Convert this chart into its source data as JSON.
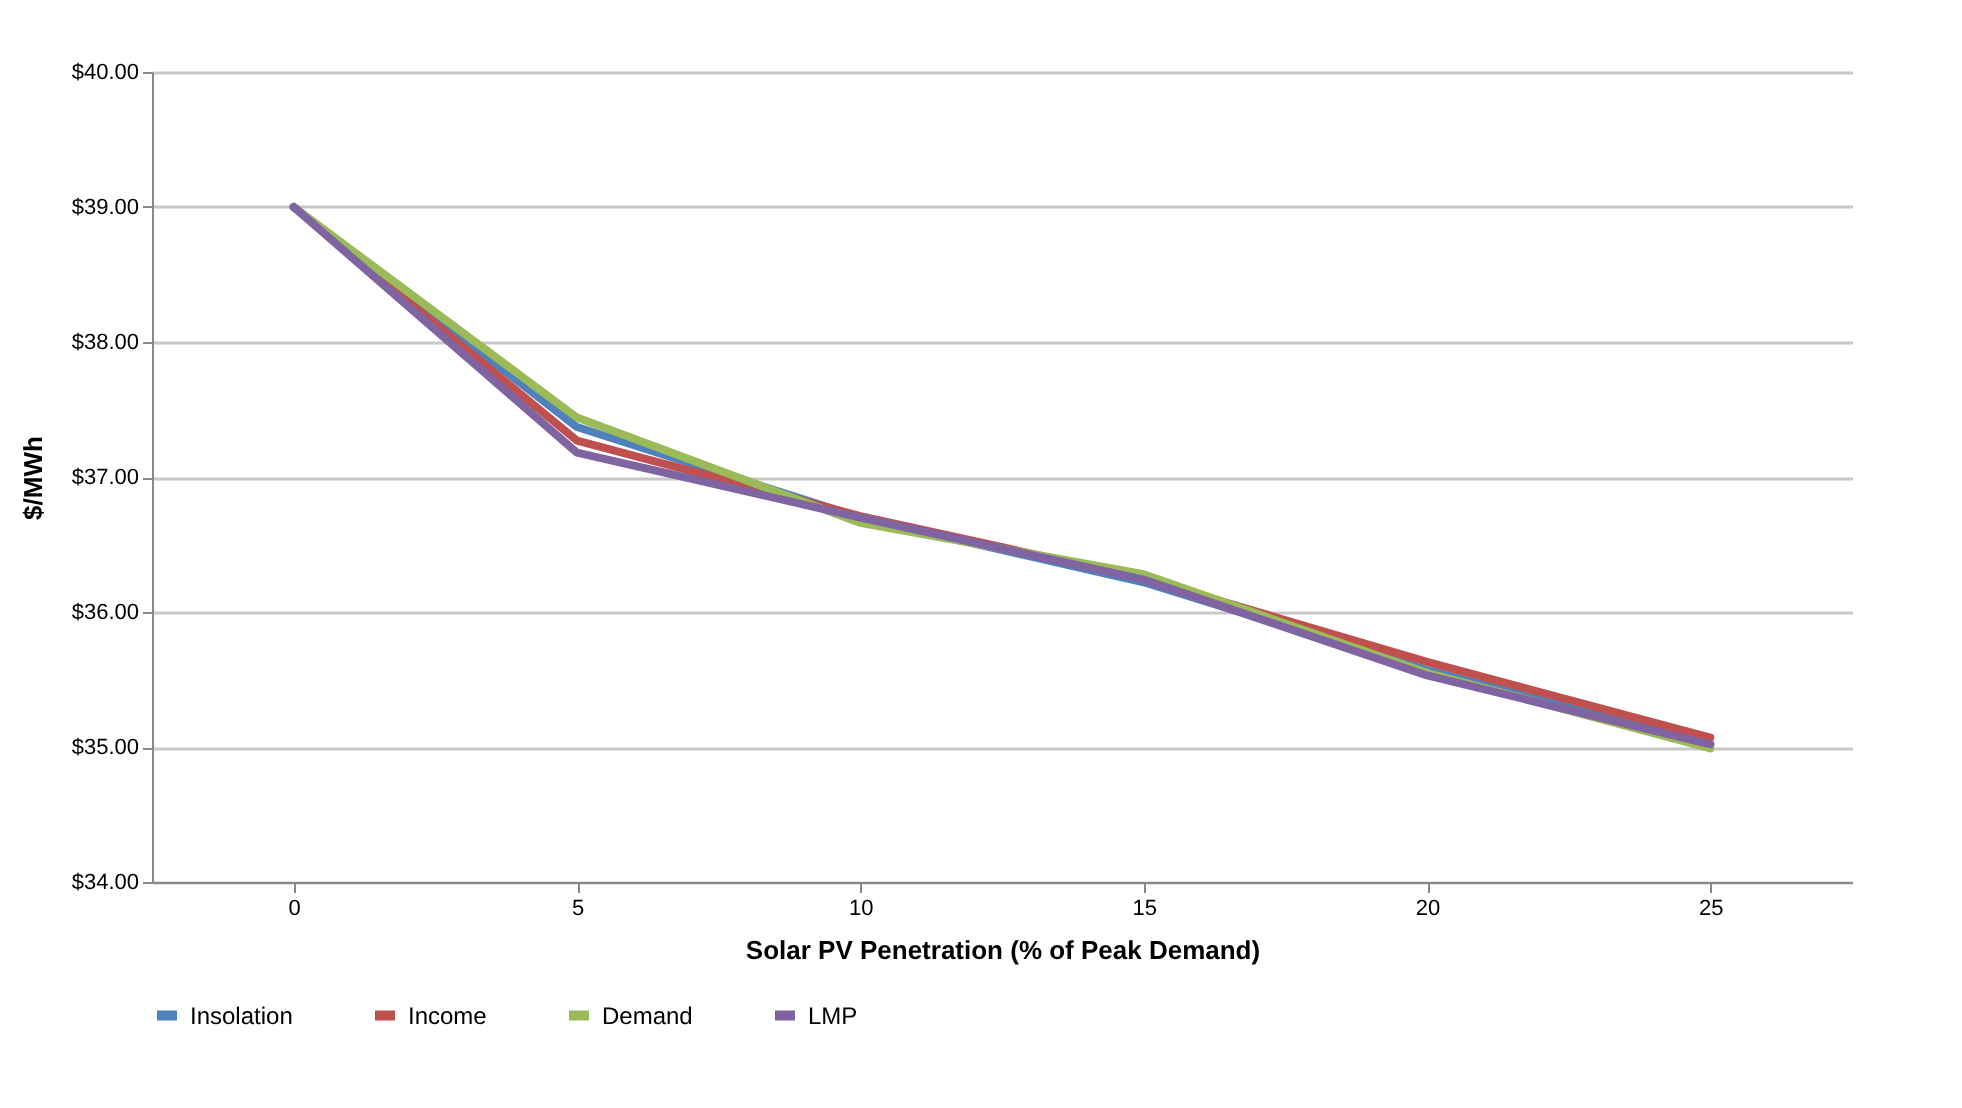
{
  "chart_data": {
    "type": "line",
    "xlabel": "Solar PV Penetration (% of Peak Demand)",
    "ylabel": "$/MWh",
    "categories": [
      "0",
      "5",
      "10",
      "15",
      "20",
      "25"
    ],
    "series": [
      {
        "name": "Insolation",
        "color": "#4f81bd",
        "values": [
          39.0,
          37.37,
          36.7,
          36.22,
          35.57,
          35.02
        ]
      },
      {
        "name": "Income",
        "color": "#c0504d",
        "values": [
          39.0,
          37.27,
          36.71,
          36.25,
          35.63,
          35.07
        ]
      },
      {
        "name": "Demand",
        "color": "#9bbb59",
        "values": [
          39.0,
          37.44,
          36.66,
          36.28,
          35.55,
          34.99
        ]
      },
      {
        "name": "LMP",
        "color": "#8064a2",
        "values": [
          39.0,
          37.18,
          36.7,
          36.24,
          35.53,
          35.02
        ]
      }
    ],
    "ylim": [
      34,
      40
    ],
    "yticks": [
      {
        "value": 34,
        "label": "$34.00"
      },
      {
        "value": 35,
        "label": "$35.00"
      },
      {
        "value": 36,
        "label": "$36.00"
      },
      {
        "value": 37,
        "label": "$37.00"
      },
      {
        "value": 38,
        "label": "$38.00"
      },
      {
        "value": 39,
        "label": "$39.00"
      },
      {
        "value": 40,
        "label": "$40.00"
      }
    ],
    "grid": "y",
    "legend": "bottom",
    "marker": "none",
    "line_style": "solid"
  }
}
